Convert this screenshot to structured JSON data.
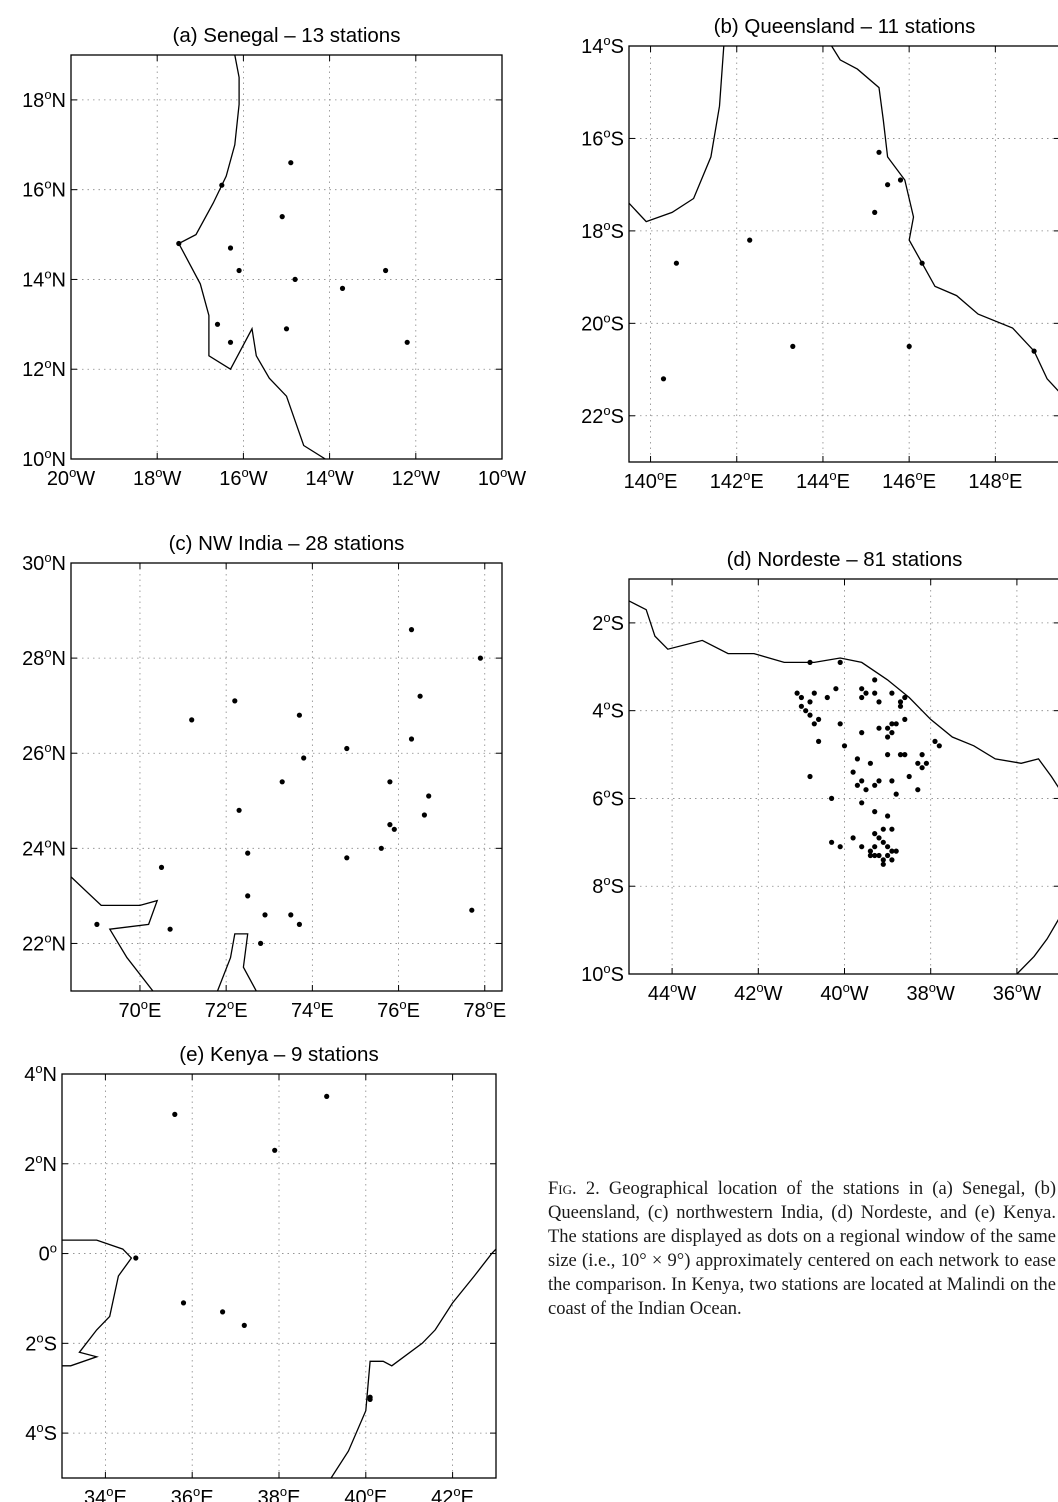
{
  "figure": {
    "caption_lead": "Fig. 2.",
    "caption_text": "Geographical location of the stations in (a) Senegal, (b) Queensland, (c) northwestern India, (d) Nordeste, and (e) Kenya. The stations are displayed as dots on a regional window of the same size (i.e., 10° × 9°) approximately centered on each network to ease the comparison. In Kenya, two stations are located at Malindi on the coast of the Indian Ocean."
  },
  "chart_data": [
    {
      "id": "senegal",
      "type": "scatter",
      "title": "(a) Senegal – 13 stations",
      "xlim": [
        -20,
        -10
      ],
      "ylim": [
        10,
        19
      ],
      "xticks": [
        {
          "v": -20,
          "label": "20°W"
        },
        {
          "v": -18,
          "label": "18°W"
        },
        {
          "v": -16,
          "label": "16°W"
        },
        {
          "v": -14,
          "label": "14°W"
        },
        {
          "v": -12,
          "label": "12°W"
        },
        {
          "v": -10,
          "label": "10°W"
        }
      ],
      "yticks": [
        {
          "v": 10,
          "label": "10°N"
        },
        {
          "v": 12,
          "label": "12°N"
        },
        {
          "v": 14,
          "label": "14°N"
        },
        {
          "v": 16,
          "label": "16°N"
        },
        {
          "v": 18,
          "label": "18°N"
        }
      ],
      "grid": true,
      "coast": [
        [
          [
            -14.1,
            10.0
          ],
          [
            -14.6,
            10.3
          ],
          [
            -15.0,
            11.4
          ],
          [
            -15.4,
            11.8
          ],
          [
            -15.7,
            12.3
          ],
          [
            -15.8,
            12.9
          ],
          [
            -16.3,
            12.0
          ],
          [
            -16.8,
            12.3
          ],
          [
            -16.8,
            13.2
          ],
          [
            -17.0,
            13.9
          ],
          [
            -17.5,
            14.8
          ],
          [
            -17.1,
            15.0
          ],
          [
            -16.7,
            15.7
          ],
          [
            -16.4,
            16.3
          ],
          [
            -16.2,
            17.0
          ],
          [
            -16.1,
            17.9
          ],
          [
            -16.1,
            18.5
          ],
          [
            -16.2,
            19.0
          ]
        ]
      ],
      "stations": [
        [
          -14.9,
          16.6
        ],
        [
          -16.5,
          16.1
        ],
        [
          -15.1,
          15.4
        ],
        [
          -17.5,
          14.8
        ],
        [
          -16.3,
          14.7
        ],
        [
          -16.1,
          14.2
        ],
        [
          -14.8,
          14.0
        ],
        [
          -12.7,
          14.2
        ],
        [
          -13.7,
          13.8
        ],
        [
          -16.6,
          13.0
        ],
        [
          -15.0,
          12.9
        ],
        [
          -16.3,
          12.6
        ],
        [
          -12.2,
          12.6
        ]
      ]
    },
    {
      "id": "queensland",
      "type": "scatter",
      "title": "(b) Queensland – 11 stations",
      "xlim": [
        139.5,
        149.5
      ],
      "ylim": [
        -23,
        -14
      ],
      "xticks": [
        {
          "v": 140,
          "label": "140°E"
        },
        {
          "v": 142,
          "label": "142°E"
        },
        {
          "v": 144,
          "label": "144°E"
        },
        {
          "v": 146,
          "label": "146°E"
        },
        {
          "v": 148,
          "label": "148°E"
        }
      ],
      "yticks": [
        {
          "v": -14,
          "label": "14°S"
        },
        {
          "v": -16,
          "label": "16°S"
        },
        {
          "v": -18,
          "label": "18°S"
        },
        {
          "v": -20,
          "label": "20°S"
        },
        {
          "v": -22,
          "label": "22°S"
        }
      ],
      "grid": true,
      "coast": [
        [
          [
            139.5,
            -17.4
          ],
          [
            139.9,
            -17.8
          ],
          [
            140.5,
            -17.6
          ],
          [
            141.0,
            -17.3
          ],
          [
            141.4,
            -16.4
          ],
          [
            141.6,
            -15.3
          ],
          [
            141.7,
            -14.0
          ]
        ],
        [
          [
            144.2,
            -14.0
          ],
          [
            144.4,
            -14.3
          ],
          [
            144.8,
            -14.5
          ],
          [
            145.3,
            -14.9
          ],
          [
            145.4,
            -15.6
          ],
          [
            145.5,
            -16.4
          ],
          [
            145.9,
            -16.9
          ],
          [
            146.1,
            -17.7
          ],
          [
            146.0,
            -18.2
          ],
          [
            146.3,
            -18.7
          ],
          [
            146.6,
            -19.2
          ],
          [
            147.1,
            -19.4
          ],
          [
            147.6,
            -19.8
          ],
          [
            148.4,
            -20.1
          ],
          [
            148.9,
            -20.6
          ],
          [
            149.2,
            -21.2
          ],
          [
            149.5,
            -21.5
          ]
        ]
      ],
      "stations": [
        [
          145.3,
          -16.3
        ],
        [
          145.8,
          -16.9
        ],
        [
          145.5,
          -17.0
        ],
        [
          145.2,
          -17.6
        ],
        [
          142.3,
          -18.2
        ],
        [
          146.3,
          -18.7
        ],
        [
          140.6,
          -18.7
        ],
        [
          143.3,
          -20.5
        ],
        [
          146.0,
          -20.5
        ],
        [
          148.9,
          -20.6
        ],
        [
          140.3,
          -21.2
        ]
      ]
    },
    {
      "id": "nw-india",
      "type": "scatter",
      "title": "(c) NW India – 28 stations",
      "xlim": [
        68.4,
        78.4
      ],
      "ylim": [
        21,
        30
      ],
      "xticks": [
        {
          "v": 70,
          "label": "70°E"
        },
        {
          "v": 72,
          "label": "72°E"
        },
        {
          "v": 74,
          "label": "74°E"
        },
        {
          "v": 76,
          "label": "76°E"
        },
        {
          "v": 78,
          "label": "78°E"
        }
      ],
      "yticks": [
        {
          "v": 22,
          "label": "22°N"
        },
        {
          "v": 24,
          "label": "24°N"
        },
        {
          "v": 26,
          "label": "26°N"
        },
        {
          "v": 28,
          "label": "28°N"
        },
        {
          "v": 30,
          "label": "30°N"
        }
      ],
      "grid": true,
      "coast": [
        [
          [
            68.4,
            23.4
          ],
          [
            69.1,
            22.8
          ],
          [
            70.0,
            22.8
          ],
          [
            70.4,
            22.9
          ],
          [
            70.2,
            22.4
          ],
          [
            69.3,
            22.3
          ],
          [
            69.7,
            21.7
          ],
          [
            70.3,
            21.0
          ]
        ],
        [
          [
            71.8,
            21.0
          ],
          [
            72.1,
            21.7
          ],
          [
            72.2,
            22.2
          ],
          [
            72.5,
            22.2
          ],
          [
            72.4,
            21.5
          ],
          [
            72.7,
            21.0
          ]
        ]
      ],
      "stations": [
        [
          76.3,
          28.6
        ],
        [
          77.9,
          28.0
        ],
        [
          72.2,
          27.1
        ],
        [
          76.5,
          27.2
        ],
        [
          71.2,
          26.7
        ],
        [
          73.7,
          26.8
        ],
        [
          76.3,
          26.3
        ],
        [
          74.8,
          26.1
        ],
        [
          73.8,
          25.9
        ],
        [
          73.3,
          25.4
        ],
        [
          75.8,
          25.4
        ],
        [
          76.7,
          25.1
        ],
        [
          72.3,
          24.8
        ],
        [
          76.6,
          24.7
        ],
        [
          75.8,
          24.5
        ],
        [
          75.9,
          24.4
        ],
        [
          75.6,
          24.0
        ],
        [
          72.5,
          23.9
        ],
        [
          74.8,
          23.8
        ],
        [
          70.5,
          23.6
        ],
        [
          72.5,
          23.0
        ],
        [
          77.7,
          22.7
        ],
        [
          72.9,
          22.6
        ],
        [
          73.5,
          22.6
        ],
        [
          73.7,
          22.4
        ],
        [
          69.0,
          22.4
        ],
        [
          70.7,
          22.3
        ],
        [
          72.8,
          22.0
        ]
      ]
    },
    {
      "id": "nordeste",
      "type": "scatter",
      "title": "(d) Nordeste – 81 stations",
      "xlim": [
        -45,
        -35
      ],
      "ylim": [
        -10,
        -1
      ],
      "xticks": [
        {
          "v": -44,
          "label": "44°W"
        },
        {
          "v": -42,
          "label": "42°W"
        },
        {
          "v": -40,
          "label": "40°W"
        },
        {
          "v": -38,
          "label": "38°W"
        },
        {
          "v": -36,
          "label": "36°W"
        }
      ],
      "yticks": [
        {
          "v": -2,
          "label": "2°S"
        },
        {
          "v": -4,
          "label": "4°S"
        },
        {
          "v": -6,
          "label": "6°S"
        },
        {
          "v": -8,
          "label": "8°S"
        },
        {
          "v": -10,
          "label": "10°S"
        }
      ],
      "grid": true,
      "coast": [
        [
          [
            -45.0,
            -1.5
          ],
          [
            -44.6,
            -1.7
          ],
          [
            -44.4,
            -2.3
          ],
          [
            -44.1,
            -2.6
          ],
          [
            -43.3,
            -2.4
          ],
          [
            -42.7,
            -2.7
          ],
          [
            -42.1,
            -2.7
          ],
          [
            -41.4,
            -2.9
          ],
          [
            -40.7,
            -2.9
          ],
          [
            -40.1,
            -2.8
          ],
          [
            -39.6,
            -2.9
          ],
          [
            -39.0,
            -3.3
          ],
          [
            -38.5,
            -3.7
          ],
          [
            -38.0,
            -4.2
          ],
          [
            -37.5,
            -4.6
          ],
          [
            -37.0,
            -4.8
          ],
          [
            -36.5,
            -5.1
          ],
          [
            -35.9,
            -5.2
          ],
          [
            -35.5,
            -5.1
          ],
          [
            -35.2,
            -5.5
          ],
          [
            -35.0,
            -5.8
          ]
        ],
        [
          [
            -35.0,
            -8.7
          ],
          [
            -35.3,
            -9.2
          ],
          [
            -35.6,
            -9.6
          ],
          [
            -36.0,
            -10.0
          ]
        ]
      ],
      "stations": [
        [
          -40.8,
          -2.9
        ],
        [
          -40.1,
          -2.9
        ],
        [
          -39.3,
          -3.3
        ],
        [
          -41.1,
          -3.6
        ],
        [
          -40.7,
          -3.6
        ],
        [
          -40.2,
          -3.5
        ],
        [
          -39.6,
          -3.5
        ],
        [
          -39.3,
          -3.6
        ],
        [
          -38.9,
          -3.6
        ],
        [
          -41.0,
          -3.7
        ],
        [
          -40.8,
          -3.8
        ],
        [
          -40.4,
          -3.7
        ],
        [
          -39.6,
          -3.7
        ],
        [
          -39.5,
          -3.6
        ],
        [
          -39.2,
          -3.8
        ],
        [
          -38.7,
          -3.8
        ],
        [
          -38.7,
          -3.9
        ],
        [
          -38.6,
          -3.7
        ],
        [
          -41.0,
          -3.9
        ],
        [
          -40.9,
          -4.0
        ],
        [
          -40.8,
          -4.1
        ],
        [
          -40.6,
          -4.2
        ],
        [
          -40.7,
          -4.3
        ],
        [
          -40.1,
          -4.3
        ],
        [
          -39.2,
          -4.4
        ],
        [
          -38.9,
          -4.3
        ],
        [
          -38.8,
          -4.3
        ],
        [
          -39.0,
          -4.4
        ],
        [
          -38.9,
          -4.5
        ],
        [
          -38.6,
          -4.2
        ],
        [
          -39.0,
          -4.6
        ],
        [
          -39.6,
          -4.5
        ],
        [
          -40.6,
          -4.7
        ],
        [
          -40.0,
          -4.8
        ],
        [
          -38.7,
          -5.0
        ],
        [
          -38.6,
          -5.0
        ],
        [
          -37.8,
          -4.8
        ],
        [
          -37.9,
          -4.7
        ],
        [
          -38.2,
          -5.0
        ],
        [
          -38.1,
          -5.2
        ],
        [
          -38.3,
          -5.2
        ],
        [
          -38.2,
          -5.3
        ],
        [
          -38.5,
          -5.5
        ],
        [
          -39.0,
          -5.0
        ],
        [
          -39.4,
          -5.2
        ],
        [
          -39.7,
          -5.1
        ],
        [
          -39.8,
          -5.4
        ],
        [
          -40.8,
          -5.5
        ],
        [
          -39.6,
          -5.6
        ],
        [
          -39.3,
          -5.7
        ],
        [
          -38.9,
          -5.6
        ],
        [
          -38.8,
          -5.9
        ],
        [
          -38.3,
          -5.8
        ],
        [
          -39.5,
          -5.8
        ],
        [
          -39.7,
          -5.7
        ],
        [
          -39.2,
          -5.6
        ],
        [
          -40.3,
          -6.0
        ],
        [
          -39.6,
          -6.1
        ],
        [
          -39.3,
          -6.3
        ],
        [
          -39.0,
          -6.4
        ],
        [
          -38.9,
          -6.7
        ],
        [
          -39.1,
          -6.7
        ],
        [
          -39.3,
          -6.8
        ],
        [
          -39.2,
          -6.9
        ],
        [
          -39.1,
          -7.0
        ],
        [
          -39.0,
          -7.1
        ],
        [
          -39.8,
          -6.9
        ],
        [
          -40.1,
          -7.1
        ],
        [
          -40.3,
          -7.0
        ],
        [
          -39.6,
          -7.1
        ],
        [
          -39.3,
          -7.1
        ],
        [
          -38.9,
          -7.2
        ],
        [
          -39.2,
          -7.3
        ],
        [
          -39.3,
          -7.3
        ],
        [
          -39.4,
          -7.2
        ],
        [
          -39.0,
          -7.3
        ],
        [
          -38.8,
          -7.2
        ],
        [
          -39.1,
          -7.4
        ],
        [
          -38.9,
          -7.4
        ],
        [
          -39.1,
          -7.5
        ],
        [
          -39.4,
          -7.3
        ]
      ]
    },
    {
      "id": "kenya",
      "type": "scatter",
      "title": "(e) Kenya – 9 stations",
      "xlim": [
        33,
        43
      ],
      "ylim": [
        -5,
        4
      ],
      "xticks": [
        {
          "v": 34,
          "label": "34°E"
        },
        {
          "v": 36,
          "label": "36°E"
        },
        {
          "v": 38,
          "label": "38°E"
        },
        {
          "v": 40,
          "label": "40°E"
        },
        {
          "v": 42,
          "label": "42°E"
        }
      ],
      "yticks": [
        {
          "v": 4,
          "label": "4°N"
        },
        {
          "v": 2,
          "label": "2°N"
        },
        {
          "v": 0,
          "label": "0°"
        },
        {
          "v": -2,
          "label": "2°S"
        },
        {
          "v": -4,
          "label": "4°S"
        }
      ],
      "grid": true,
      "coast": [
        [
          [
            33.0,
            0.3
          ],
          [
            33.8,
            0.3
          ],
          [
            34.4,
            0.1
          ],
          [
            34.6,
            -0.1
          ],
          [
            34.3,
            -0.5
          ],
          [
            34.1,
            -1.4
          ],
          [
            33.8,
            -1.7
          ],
          [
            33.4,
            -2.2
          ],
          [
            33.8,
            -2.3
          ],
          [
            33.2,
            -2.5
          ],
          [
            33.0,
            -2.5
          ]
        ],
        [
          [
            39.2,
            -5.0
          ],
          [
            39.6,
            -4.4
          ],
          [
            40.0,
            -3.5
          ],
          [
            40.1,
            -2.4
          ],
          [
            40.4,
            -2.4
          ],
          [
            40.6,
            -2.5
          ],
          [
            41.3,
            -2.0
          ],
          [
            41.6,
            -1.7
          ],
          [
            42.0,
            -1.1
          ],
          [
            42.5,
            -0.5
          ],
          [
            42.9,
            0.0
          ],
          [
            43.0,
            0.1
          ]
        ]
      ],
      "stations": [
        [
          35.6,
          3.1
        ],
        [
          39.1,
          3.5
        ],
        [
          37.9,
          2.3
        ],
        [
          34.7,
          -0.1
        ],
        [
          35.8,
          -1.1
        ],
        [
          36.7,
          -1.3
        ],
        [
          37.2,
          -1.6
        ],
        [
          40.1,
          -3.2
        ],
        [
          40.1,
          -3.25
        ]
      ]
    }
  ]
}
